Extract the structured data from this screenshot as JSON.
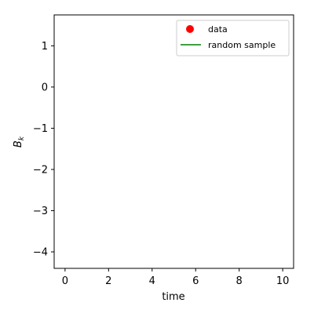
{
  "chart_data": {
    "type": "scatter",
    "xlabel": "time",
    "ylabel_main": "B",
    "ylabel_sub": "k",
    "xlim": [
      -0.5,
      10.5
    ],
    "ylim": [
      -4.4,
      1.75
    ],
    "xticks": [
      0,
      2,
      4,
      6,
      8,
      10
    ],
    "xtick_labels": [
      "0",
      "2",
      "4",
      "6",
      "8",
      "10"
    ],
    "yticks": [
      1,
      0,
      -1,
      -2,
      -3,
      -4
    ],
    "ytick_labels": [
      "1",
      "0",
      "−1",
      "−2",
      "−3",
      "−4"
    ],
    "grid": false,
    "legend_position": "top-right",
    "series": [
      {
        "name": "data",
        "kind": "marker",
        "color": "#ff0000",
        "x": [],
        "y": []
      },
      {
        "name": "random sample",
        "kind": "line",
        "color": "#008000",
        "x": [],
        "y": []
      }
    ]
  }
}
